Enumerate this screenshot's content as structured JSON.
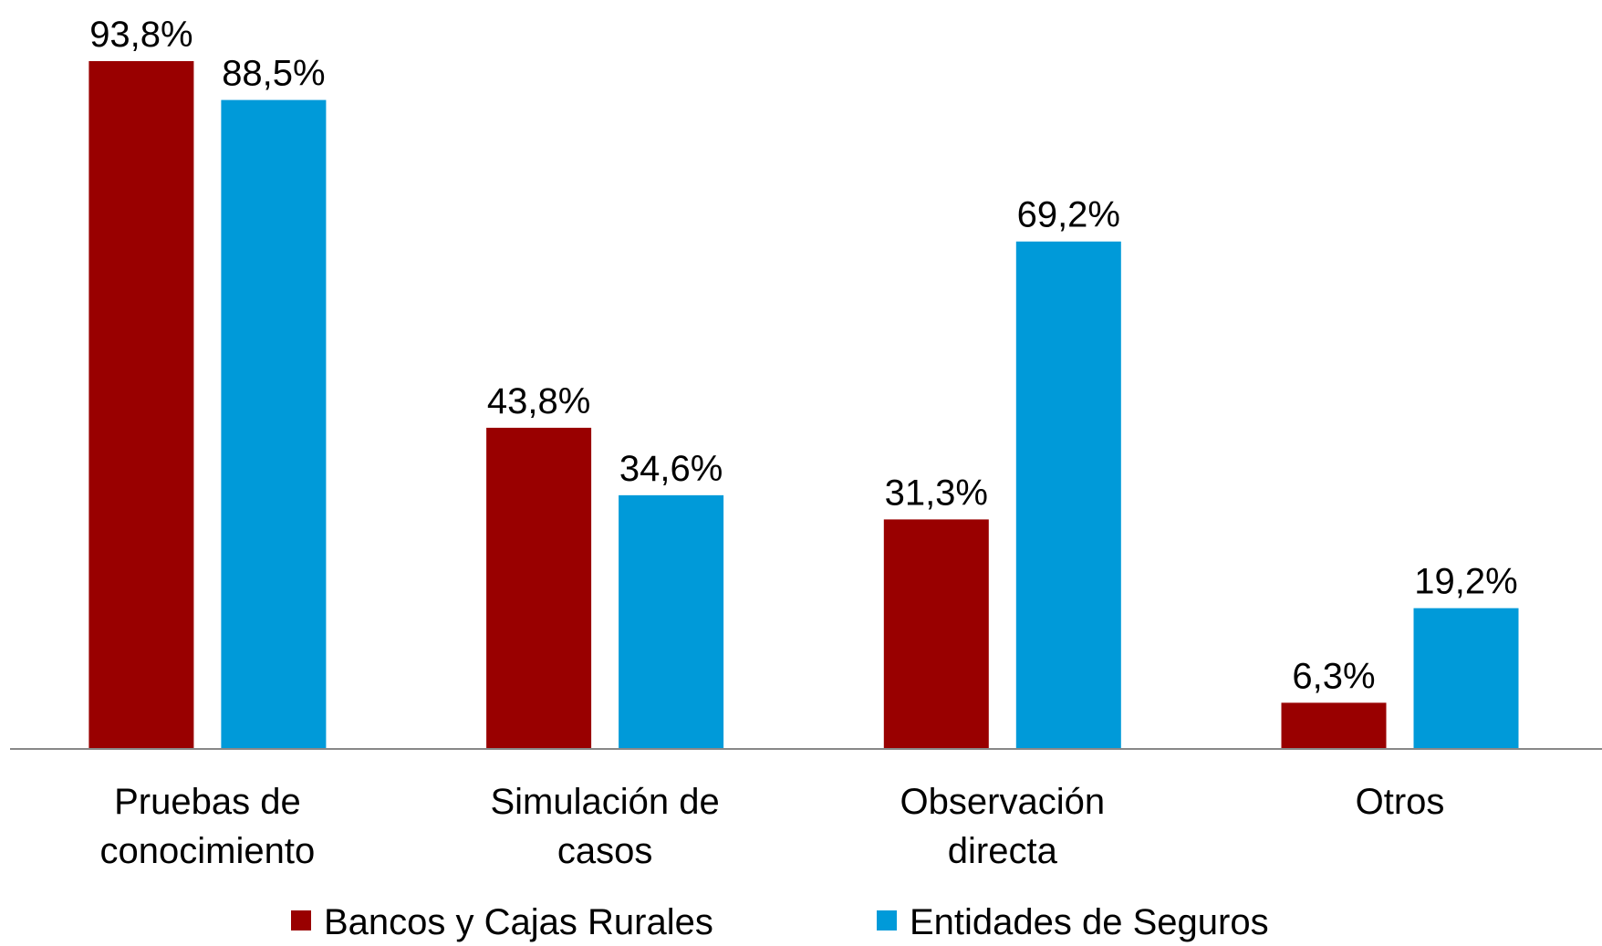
{
  "chart_data": {
    "type": "bar",
    "categories": [
      "Pruebas de conocimiento",
      "Simulación de casos",
      "Observación directa",
      "Otros"
    ],
    "series": [
      {
        "name": "Bancos y Cajas Rurales",
        "color": "#990000",
        "values": [
          93.8,
          43.8,
          31.3,
          6.3
        ],
        "value_labels": [
          "93,8%",
          "43,8%",
          "31,3%",
          "6,3%"
        ]
      },
      {
        "name": "Entidades de Seguros",
        "color": "#009ad9",
        "values": [
          88.5,
          34.6,
          69.2,
          19.2
        ],
        "value_labels": [
          "88,5%",
          "34,6%",
          "69,2%",
          "19,2%"
        ]
      }
    ],
    "legend": "bottom"
  }
}
